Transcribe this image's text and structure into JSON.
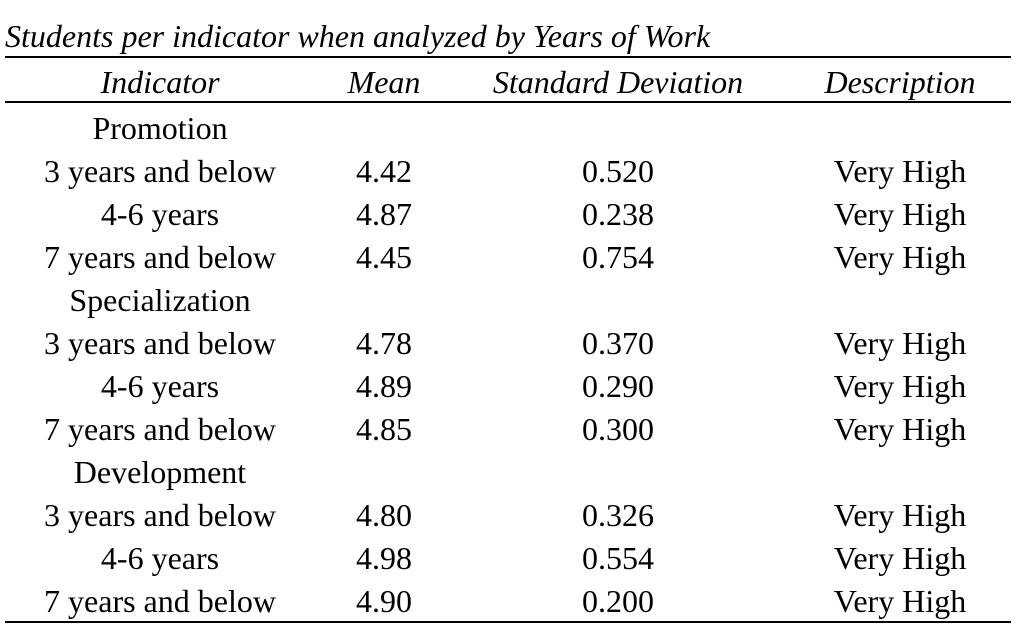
{
  "caption": "Students per indicator when analyzed by Years of Work",
  "table": {
    "columns": [
      "Indicator",
      "Mean",
      "Standard Deviation",
      "Description"
    ],
    "groups": [
      {
        "label": "Promotion",
        "rows": [
          [
            "3 years and below",
            "4.42",
            "0.520",
            "Very High"
          ],
          [
            "4-6 years",
            "4.87",
            "0.238",
            "Very High"
          ],
          [
            "7 years and below",
            "4.45",
            "0.754",
            "Very High"
          ]
        ]
      },
      {
        "label": "Specialization",
        "rows": [
          [
            "3 years and below",
            "4.78",
            "0.370",
            "Very High"
          ],
          [
            "4-6 years",
            "4.89",
            "0.290",
            "Very High"
          ],
          [
            "7 years and below",
            "4.85",
            "0.300",
            "Very High"
          ]
        ]
      },
      {
        "label": "Development",
        "rows": [
          [
            "3 years and below",
            "4.80",
            "0.326",
            "Very High"
          ],
          [
            "4-6 years",
            "4.98",
            "0.554",
            "Very High"
          ],
          [
            "7 years and below",
            "4.90",
            "0.200",
            "Very High"
          ]
        ]
      }
    ]
  }
}
